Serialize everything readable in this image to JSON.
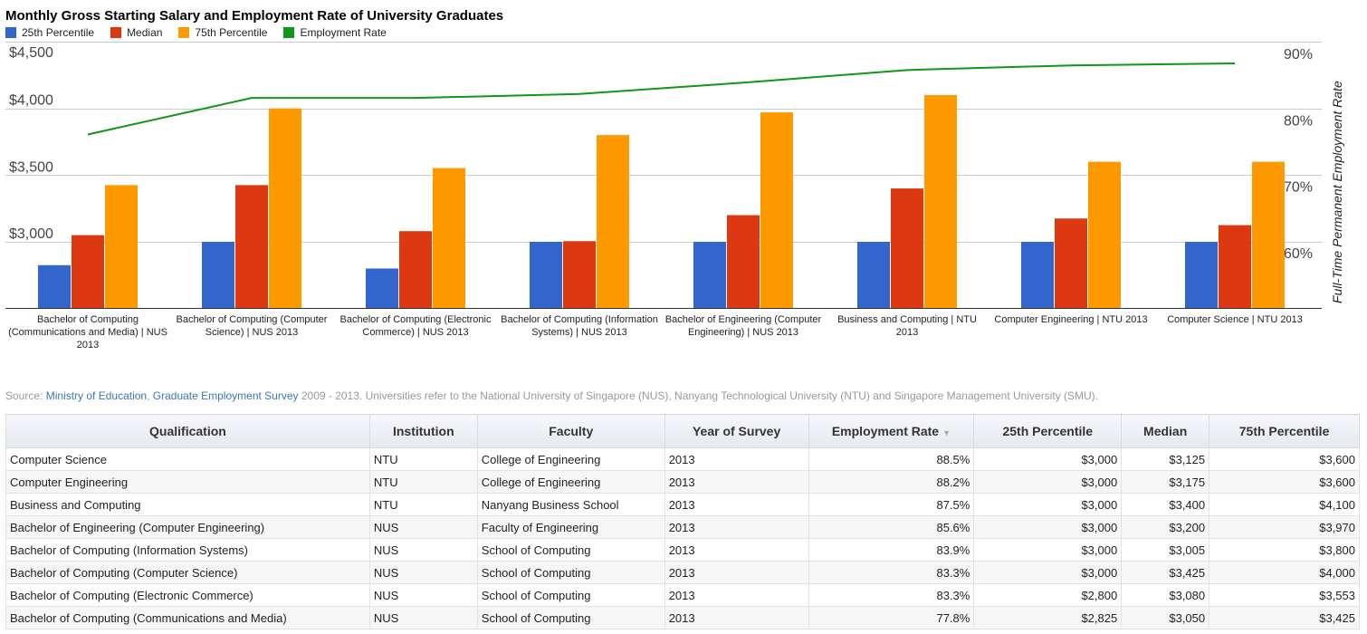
{
  "title": "Monthly Gross Starting Salary and Employment Rate of University Graduates",
  "legend": [
    {
      "label": "25th Percentile",
      "color": "#3366cc"
    },
    {
      "label": "Median",
      "color": "#dc3912"
    },
    {
      "label": "75th Percentile",
      "color": "#ff9900"
    },
    {
      "label": "Employment Rate",
      "color": "#109618"
    }
  ],
  "chart_data": {
    "type": "bar",
    "title": "Monthly Gross Starting Salary and Employment Rate of University Graduates",
    "categories": [
      [
        "Bachelor of Computing",
        "(Communications and Media) | NUS",
        "2013"
      ],
      [
        "Bachelor of Computing (Computer",
        "Science) | NUS 2013"
      ],
      [
        "Bachelor of Computing (Electronic",
        "Commerce) | NUS 2013"
      ],
      [
        "Bachelor of Computing (Information",
        "Systems) | NUS 2013"
      ],
      [
        "Bachelor of Engineering (Computer",
        "Engineering) | NUS 2013"
      ],
      [
        "Business and Computing | NTU",
        "2013"
      ],
      [
        "Computer Engineering | NTU 2013"
      ],
      [
        "Computer Science | NTU 2013"
      ]
    ],
    "series": [
      {
        "name": "25th Percentile",
        "color": "#3366cc",
        "values": [
          2825,
          3000,
          2800,
          3000,
          3000,
          3000,
          3000,
          3000
        ]
      },
      {
        "name": "Median",
        "color": "#dc3912",
        "values": [
          3050,
          3425,
          3080,
          3005,
          3200,
          3400,
          3175,
          3125
        ]
      },
      {
        "name": "75th Percentile",
        "color": "#ff9900",
        "values": [
          3425,
          4000,
          3553,
          3800,
          3970,
          4100,
          3600,
          3600
        ]
      }
    ],
    "line_series": {
      "name": "Employment Rate",
      "color": "#109618",
      "values": [
        77.8,
        83.3,
        83.3,
        83.9,
        85.6,
        87.5,
        88.2,
        88.5
      ]
    },
    "y_left": {
      "ticks": [
        "$3,000",
        "$3,500",
        "$4,000",
        "$4,500"
      ],
      "tick_values": [
        3000,
        3500,
        4000,
        4500
      ],
      "range": [
        2500,
        4500
      ]
    },
    "y_right": {
      "label": "Full-Time Permanent Employment Rate",
      "ticks": [
        "60%",
        "70%",
        "80%",
        "90%"
      ],
      "tick_values": [
        60,
        70,
        80,
        90
      ],
      "range": [
        50,
        90
      ]
    },
    "grid": true
  },
  "source": {
    "prefix": "Source: ",
    "link1": "Ministry of Education",
    "sep": ", ",
    "link2": "Graduate Employment Survey",
    "suffix": " 2009 - 2013. Universities refer to the National University of Singapore (NUS), Nanyang Technological University (NTU) and Singapore Management University (SMU)."
  },
  "table": {
    "headers": [
      "Qualification",
      "Institution",
      "Faculty",
      "Year of Survey",
      "Employment Rate",
      "25th Percentile",
      "Median",
      "75th Percentile"
    ],
    "sort_indicator": "▼",
    "rows": [
      [
        "Computer Science",
        "NTU",
        "College of Engineering",
        "2013",
        "88.5%",
        "$3,000",
        "$3,125",
        "$3,600"
      ],
      [
        "Computer Engineering",
        "NTU",
        "College of Engineering",
        "2013",
        "88.2%",
        "$3,000",
        "$3,175",
        "$3,600"
      ],
      [
        "Business and Computing",
        "NTU",
        "Nanyang Business School",
        "2013",
        "87.5%",
        "$3,000",
        "$3,400",
        "$4,100"
      ],
      [
        "Bachelor of Engineering (Computer Engineering)",
        "NUS",
        "Faculty of Engineering",
        "2013",
        "85.6%",
        "$3,000",
        "$3,200",
        "$3,970"
      ],
      [
        "Bachelor of Computing (Information Systems)",
        "NUS",
        "School of Computing",
        "2013",
        "83.9%",
        "$3,000",
        "$3,005",
        "$3,800"
      ],
      [
        "Bachelor of Computing (Computer Science)",
        "NUS",
        "School of Computing",
        "2013",
        "83.3%",
        "$3,000",
        "$3,425",
        "$4,000"
      ],
      [
        "Bachelor of Computing (Electronic Commerce)",
        "NUS",
        "School of Computing",
        "2013",
        "83.3%",
        "$2,800",
        "$3,080",
        "$3,553"
      ],
      [
        "Bachelor of Computing (Communications and Media)",
        "NUS",
        "School of Computing",
        "2013",
        "77.8%",
        "$2,825",
        "$3,050",
        "$3,425"
      ]
    ]
  }
}
